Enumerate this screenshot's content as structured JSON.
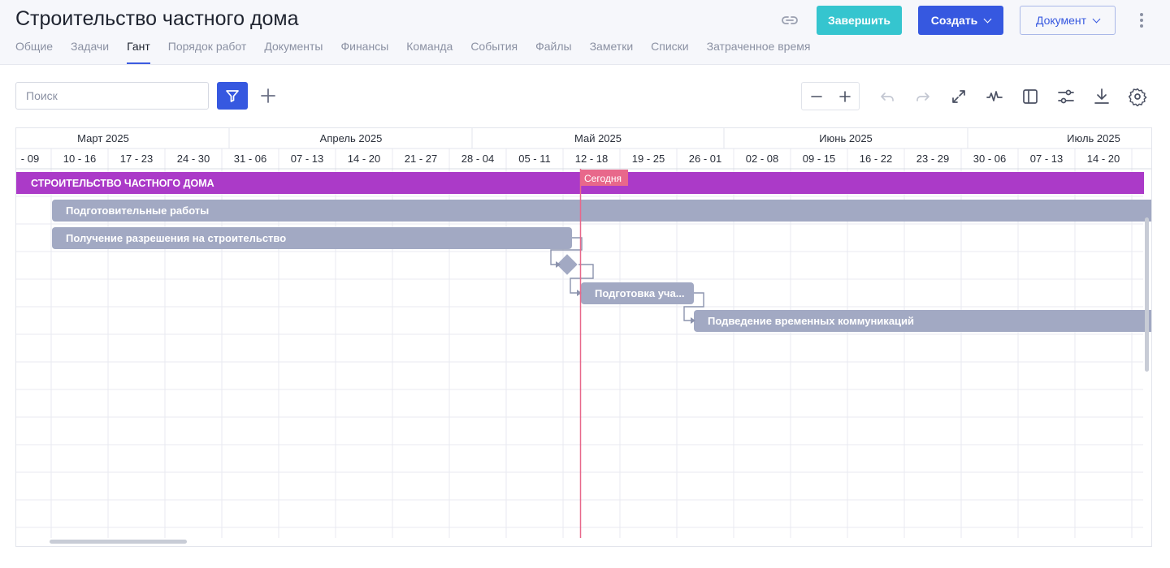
{
  "header": {
    "title": "Строительство частного дома",
    "finish_label": "Завершить",
    "create_label": "Создать",
    "document_label": "Документ"
  },
  "tabs": [
    "Общие",
    "Задачи",
    "Гант",
    "Порядок работ",
    "Документы",
    "Финансы",
    "Команда",
    "События",
    "Файлы",
    "Заметки",
    "Списки",
    "Затраченное время"
  ],
  "active_tab": "Гант",
  "toolbar": {
    "search_placeholder": "Поиск",
    "icons": [
      "filter-icon",
      "plus-icon",
      "minus-icon",
      "plus-icon",
      "undo-icon",
      "redo-icon",
      "expand-icon",
      "critical-path-icon",
      "panel-icon",
      "sliders-icon",
      "download-icon",
      "settings-icon"
    ]
  },
  "colors": {
    "accent": "#3658e0",
    "finish": "#35c5cf",
    "project_bar": "#ab3ac8",
    "task_bar": "#a2a9c3",
    "today_line": "#e8688b"
  },
  "gantt": {
    "months": [
      "Март 2025",
      "Апрель 2025",
      "Май 2025",
      "Июнь 2025",
      "Июль 2025"
    ],
    "weeks": [
      "- 09",
      "10 - 16",
      "17 - 23",
      "24 - 30",
      "31 - 06",
      "07 - 13",
      "14 - 20",
      "21 - 27",
      "28 - 04",
      "05 - 11",
      "12 - 18",
      "19 - 25",
      "26 - 01",
      "02 - 08",
      "09 - 15",
      "16 - 22",
      "23 - 29",
      "30 - 06",
      "07 - 13",
      "14 - 20"
    ],
    "today_label": "Сегодня",
    "tasks": [
      {
        "name": "СТРОИТЕЛЬСТВО ЧАСТНОГО ДОМА",
        "type": "project"
      },
      {
        "name": "Подготовительные работы",
        "type": "task"
      },
      {
        "name": "Получение разрешения на строительство",
        "type": "task"
      },
      {
        "name": "",
        "type": "milestone"
      },
      {
        "name": "Подготовка уча...",
        "type": "task"
      },
      {
        "name": "Подведение временных коммуникаций",
        "type": "task"
      }
    ]
  }
}
